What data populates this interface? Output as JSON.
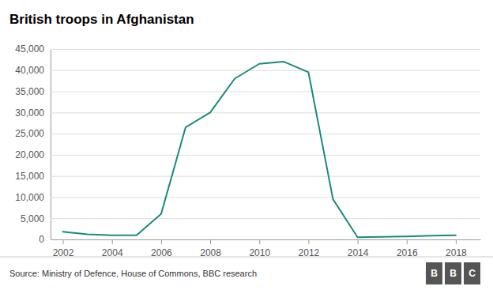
{
  "chart_data": {
    "type": "line",
    "title": "British troops in Afghanistan",
    "annotations": [
      "Source: Ministry of Defence, House of Commons, BBC research",
      "BBC"
    ],
    "x": [
      2002,
      2003,
      2004,
      2005,
      2006,
      2007,
      2008,
      2009,
      2010,
      2011,
      2012,
      2013,
      2014,
      2015,
      2016,
      2017,
      2018
    ],
    "values": [
      1800,
      1200,
      1000,
      1000,
      6000,
      26500,
      30000,
      38000,
      41500,
      42000,
      39500,
      9500,
      500,
      600,
      700,
      900,
      1000
    ],
    "color": "#1a8a7a",
    "xlim": [
      2001.5,
      2019.0
    ],
    "xticks": [
      2002,
      2004,
      2006,
      2008,
      2010,
      2012,
      2014,
      2016,
      2018
    ],
    "ylim": [
      0,
      45000
    ],
    "yticks": [
      0,
      {
        "value": 5000,
        "label": "5,000"
      },
      {
        "value": 10000,
        "label": "10,000"
      },
      {
        "value": 15000,
        "label": "15,000"
      },
      {
        "value": 20000,
        "label": "20,000"
      },
      {
        "value": 25000,
        "label": "25,000"
      },
      {
        "value": 30000,
        "label": "30,000"
      },
      {
        "value": 35000,
        "label": "35,000"
      },
      {
        "value": 40000,
        "label": "40,000"
      },
      {
        "value": 45000,
        "label": "45,000"
      }
    ],
    "grid": true
  }
}
